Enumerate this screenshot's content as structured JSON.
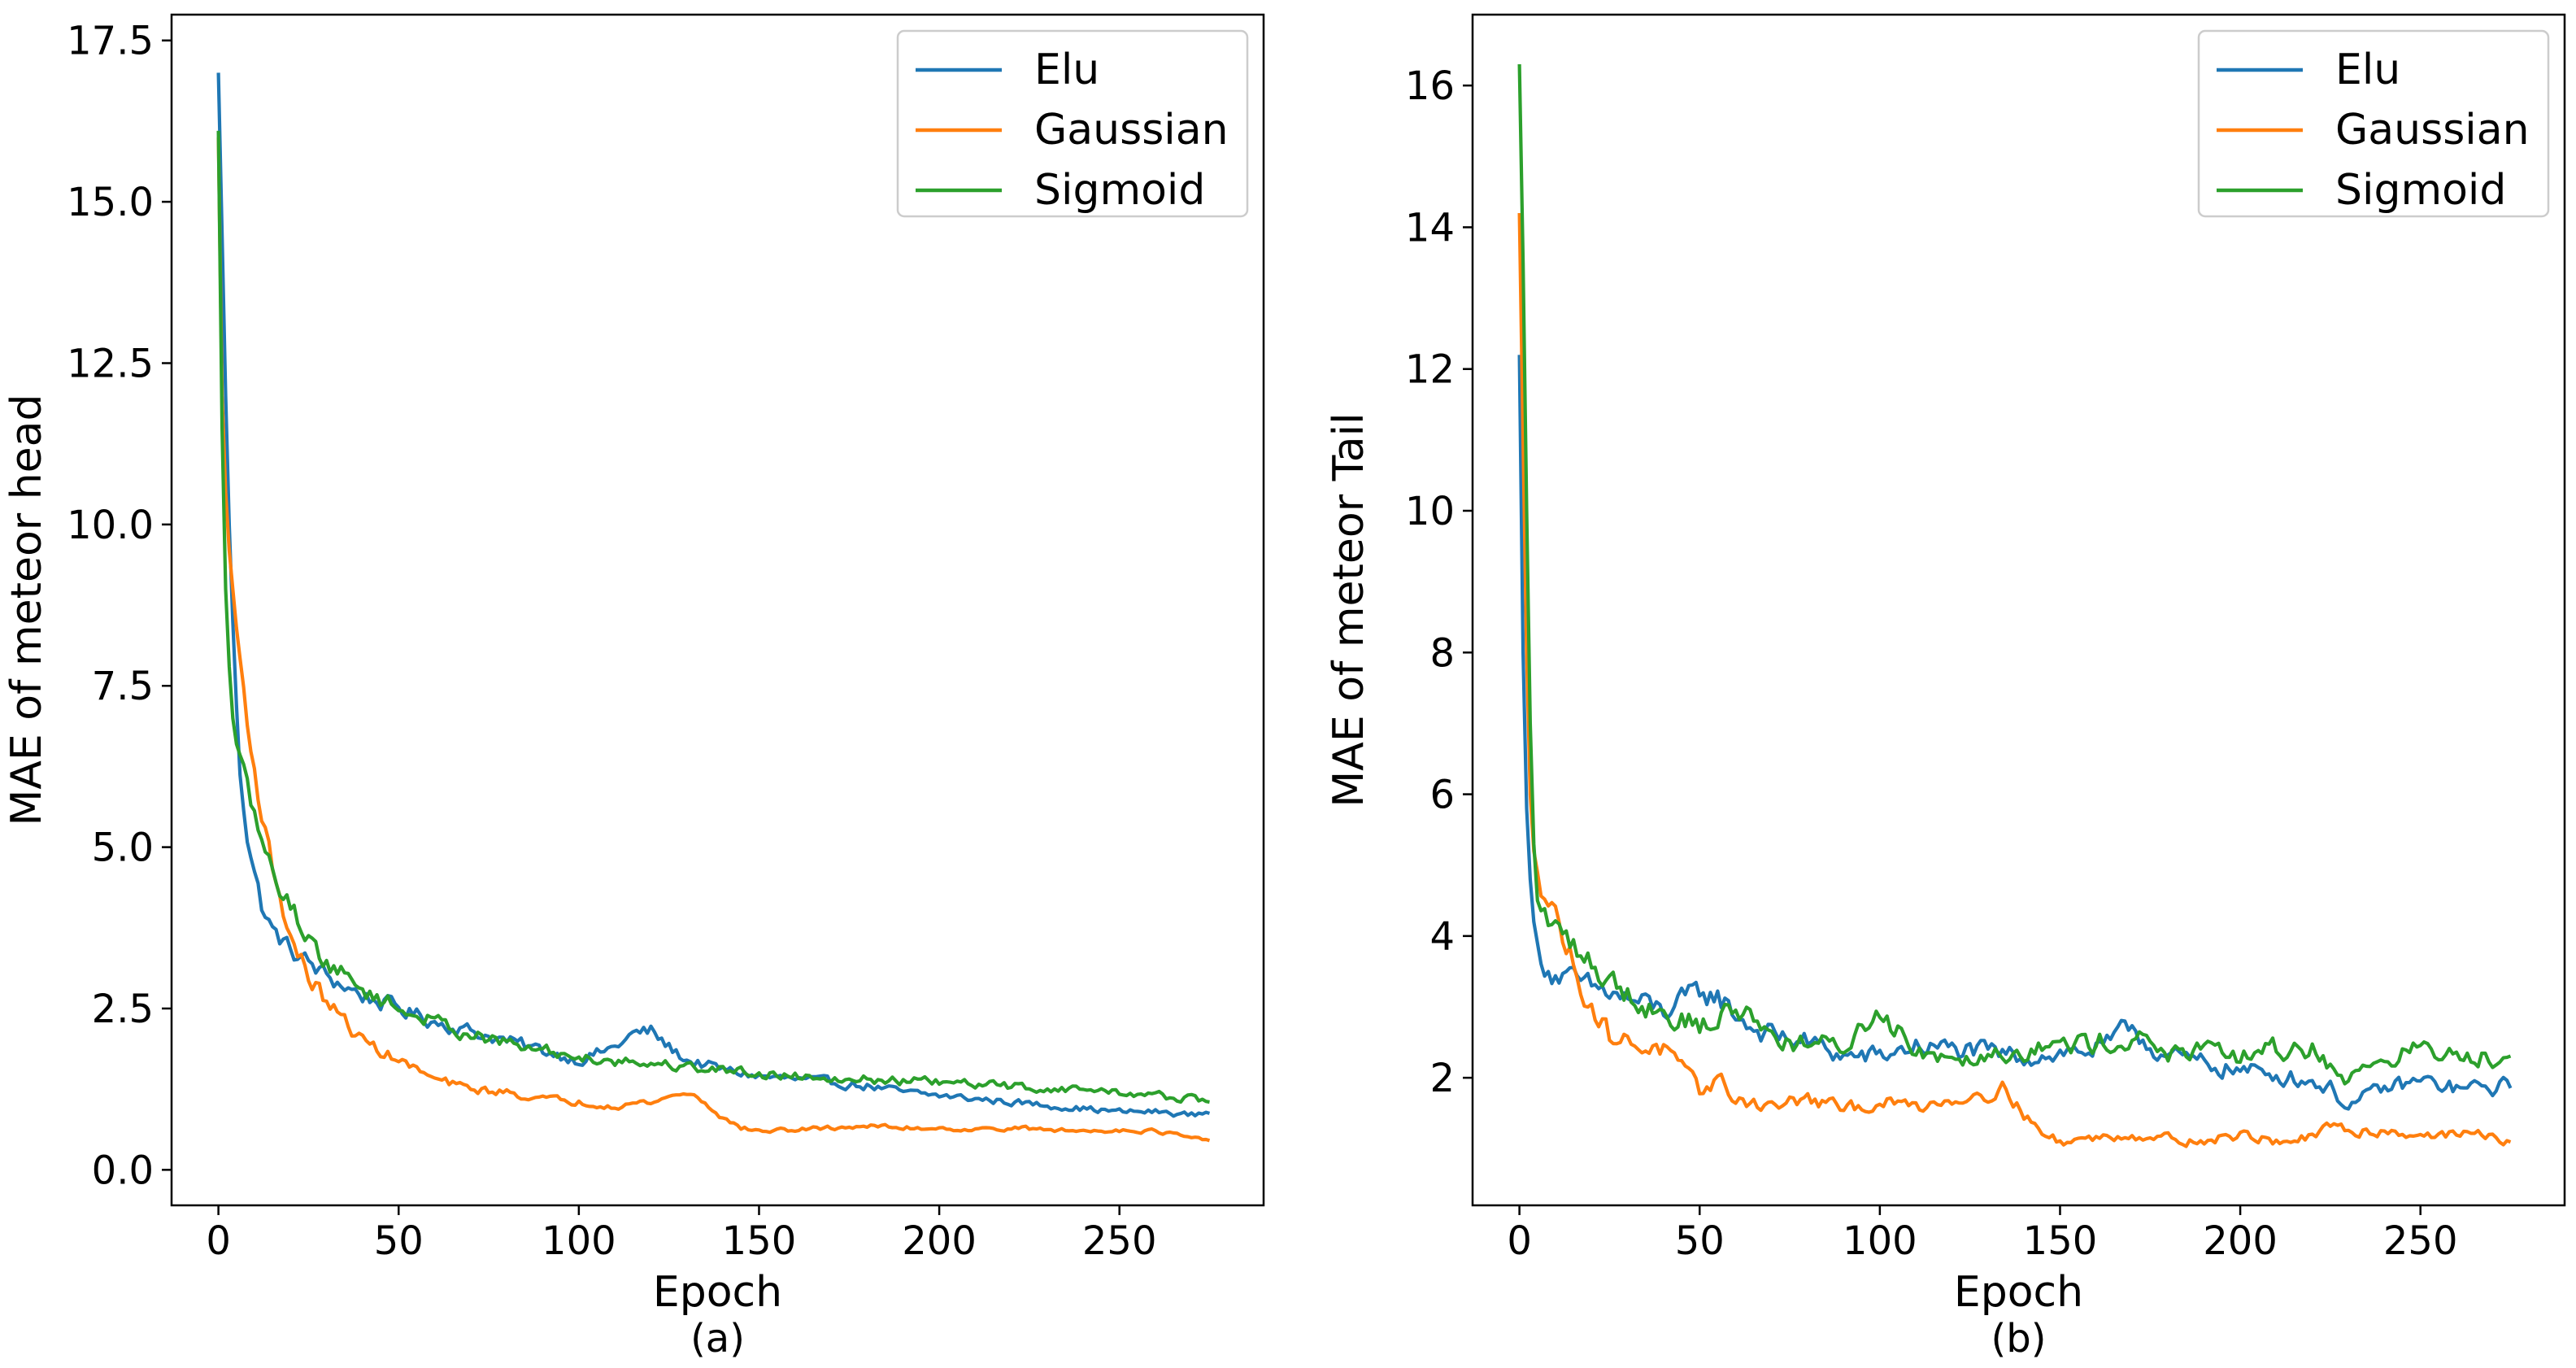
{
  "chart_data": [
    {
      "type": "line",
      "panel_label": "(a)",
      "xlabel": "Epoch",
      "ylabel": "MAE of meteor head",
      "xlim": [
        -13,
        290
      ],
      "ylim": [
        -0.55,
        17.9
      ],
      "xticks": [
        0,
        50,
        100,
        150,
        200,
        250
      ],
      "xtick_labels": [
        "0",
        "50",
        "100",
        "150",
        "200",
        "250"
      ],
      "yticks": [
        0.0,
        2.5,
        5.0,
        7.5,
        10.0,
        12.5,
        15.0,
        17.5
      ],
      "ytick_labels": [
        "0.0",
        "2.5",
        "5.0",
        "7.5",
        "10.0",
        "12.5",
        "15.0",
        "17.5"
      ],
      "legend_position": "top-right",
      "series": [
        {
          "name": "Elu",
          "color": "#1f77b4",
          "x": [
            0,
            1,
            2,
            3,
            4,
            5,
            6,
            8,
            10,
            12,
            15,
            20,
            25,
            30,
            40,
            50,
            60,
            70,
            80,
            90,
            100,
            110,
            115,
            120,
            125,
            130,
            140,
            150,
            160,
            170,
            180,
            190,
            200,
            210,
            220,
            230,
            240,
            250,
            260,
            270,
            275
          ],
          "y": [
            17.0,
            14.5,
            12.0,
            10.0,
            8.5,
            7.2,
            6.2,
            5.2,
            4.6,
            4.1,
            3.7,
            3.4,
            3.2,
            3.0,
            2.7,
            2.5,
            2.3,
            2.15,
            2.0,
            1.85,
            1.7,
            1.9,
            2.1,
            2.15,
            1.9,
            1.7,
            1.55,
            1.45,
            1.4,
            1.35,
            1.3,
            1.2,
            1.15,
            1.1,
            1.05,
            1.0,
            0.95,
            0.9,
            0.9,
            0.85,
            0.9
          ]
        },
        {
          "name": "Gaussian",
          "color": "#ff7f0e",
          "x": [
            0,
            1,
            2,
            3,
            4,
            5,
            6,
            8,
            10,
            12,
            15,
            20,
            25,
            30,
            35,
            40,
            50,
            60,
            70,
            80,
            90,
            100,
            110,
            120,
            130,
            135,
            140,
            145,
            150,
            160,
            170,
            180,
            190,
            200,
            210,
            220,
            230,
            240,
            250,
            260,
            270,
            275
          ],
          "y": [
            16.0,
            12.0,
            10.5,
            9.6,
            9.0,
            8.4,
            7.9,
            7.0,
            6.2,
            5.5,
            4.7,
            3.6,
            3.0,
            2.6,
            2.3,
            2.0,
            1.7,
            1.4,
            1.25,
            1.2,
            1.1,
            1.05,
            1.0,
            1.05,
            1.2,
            1.05,
            0.8,
            0.65,
            0.6,
            0.62,
            0.65,
            0.68,
            0.65,
            0.65,
            0.62,
            0.65,
            0.62,
            0.6,
            0.62,
            0.6,
            0.5,
            0.42
          ]
        },
        {
          "name": "Sigmoid",
          "color": "#2ca02c",
          "x": [
            0,
            1,
            2,
            3,
            4,
            5,
            6,
            8,
            10,
            12,
            15,
            20,
            25,
            30,
            40,
            50,
            60,
            70,
            80,
            90,
            100,
            110,
            120,
            130,
            140,
            150,
            160,
            170,
            180,
            190,
            200,
            210,
            220,
            230,
            240,
            250,
            260,
            270,
            275
          ],
          "y": [
            16.1,
            11.5,
            9.0,
            7.8,
            7.0,
            6.6,
            6.3,
            5.9,
            5.5,
            5.1,
            4.6,
            4.1,
            3.6,
            3.2,
            2.8,
            2.5,
            2.3,
            2.1,
            1.95,
            1.85,
            1.75,
            1.7,
            1.65,
            1.6,
            1.55,
            1.5,
            1.45,
            1.45,
            1.4,
            1.38,
            1.35,
            1.32,
            1.3,
            1.25,
            1.25,
            1.2,
            1.15,
            1.1,
            1.05
          ]
        }
      ]
    },
    {
      "type": "line",
      "panel_label": "(b)",
      "xlabel": "Epoch",
      "ylabel": "MAE of meteor Tail",
      "xlim": [
        -13,
        290
      ],
      "ylim": [
        0.2,
        17.0
      ],
      "xticks": [
        0,
        50,
        100,
        150,
        200,
        250
      ],
      "xtick_labels": [
        "0",
        "50",
        "100",
        "150",
        "200",
        "250"
      ],
      "yticks": [
        2,
        4,
        6,
        8,
        10,
        12,
        14,
        16
      ],
      "ytick_labels": [
        "2",
        "4",
        "6",
        "8",
        "10",
        "12",
        "14",
        "16"
      ],
      "legend_position": "top-right",
      "series": [
        {
          "name": "Elu",
          "color": "#1f77b4",
          "x": [
            0,
            1,
            2,
            3,
            4,
            5,
            6,
            8,
            10,
            15,
            20,
            25,
            30,
            40,
            45,
            50,
            55,
            60,
            65,
            70,
            80,
            90,
            100,
            110,
            120,
            130,
            140,
            150,
            160,
            165,
            170,
            175,
            180,
            190,
            200,
            210,
            220,
            225,
            230,
            240,
            250,
            260,
            270,
            275
          ],
          "y": [
            12.2,
            8.0,
            5.8,
            4.8,
            4.2,
            3.9,
            3.7,
            3.55,
            3.45,
            3.35,
            3.25,
            3.2,
            3.1,
            2.95,
            3.05,
            3.2,
            3.15,
            2.9,
            2.7,
            2.6,
            2.5,
            2.3,
            2.3,
            2.45,
            2.4,
            2.35,
            2.3,
            2.35,
            2.4,
            2.5,
            2.75,
            2.45,
            2.3,
            2.2,
            2.1,
            2.05,
            1.95,
            1.85,
            1.6,
            1.85,
            1.95,
            1.85,
            1.85,
            1.9
          ]
        },
        {
          "name": "Gaussian",
          "color": "#ff7f0e",
          "x": [
            0,
            1,
            2,
            3,
            4,
            5,
            6,
            8,
            10,
            15,
            20,
            25,
            30,
            40,
            50,
            55,
            60,
            70,
            80,
            90,
            100,
            110,
            120,
            130,
            135,
            140,
            145,
            150,
            160,
            170,
            180,
            190,
            200,
            210,
            220,
            225,
            230,
            240,
            250,
            260,
            270,
            275
          ],
          "y": [
            14.2,
            11.0,
            8.0,
            6.0,
            5.2,
            4.9,
            4.7,
            4.5,
            4.3,
            3.6,
            3.0,
            2.6,
            2.5,
            2.4,
            1.8,
            2.0,
            1.7,
            1.6,
            1.7,
            1.55,
            1.65,
            1.6,
            1.7,
            1.8,
            1.85,
            1.5,
            1.2,
            1.1,
            1.15,
            1.2,
            1.15,
            1.1,
            1.2,
            1.1,
            1.15,
            1.3,
            1.25,
            1.25,
            1.2,
            1.2,
            1.2,
            1.05
          ]
        },
        {
          "name": "Sigmoid",
          "color": "#2ca02c",
          "x": [
            0,
            1,
            2,
            3,
            4,
            5,
            6,
            8,
            10,
            15,
            20,
            25,
            30,
            40,
            50,
            55,
            60,
            65,
            70,
            80,
            90,
            95,
            100,
            105,
            110,
            120,
            130,
            140,
            150,
            160,
            170,
            175,
            180,
            190,
            200,
            210,
            220,
            225,
            230,
            240,
            250,
            260,
            270,
            275
          ],
          "y": [
            16.3,
            13.5,
            10.0,
            7.0,
            5.3,
            4.5,
            4.3,
            4.2,
            4.1,
            3.9,
            3.6,
            3.4,
            3.2,
            2.9,
            2.75,
            2.8,
            3.0,
            2.85,
            2.6,
            2.45,
            2.45,
            2.7,
            2.95,
            2.7,
            2.4,
            2.3,
            2.35,
            2.4,
            2.45,
            2.5,
            2.55,
            2.5,
            2.35,
            2.35,
            2.3,
            2.4,
            2.4,
            2.2,
            1.95,
            2.3,
            2.4,
            2.3,
            2.3,
            2.35
          ]
        }
      ]
    }
  ]
}
